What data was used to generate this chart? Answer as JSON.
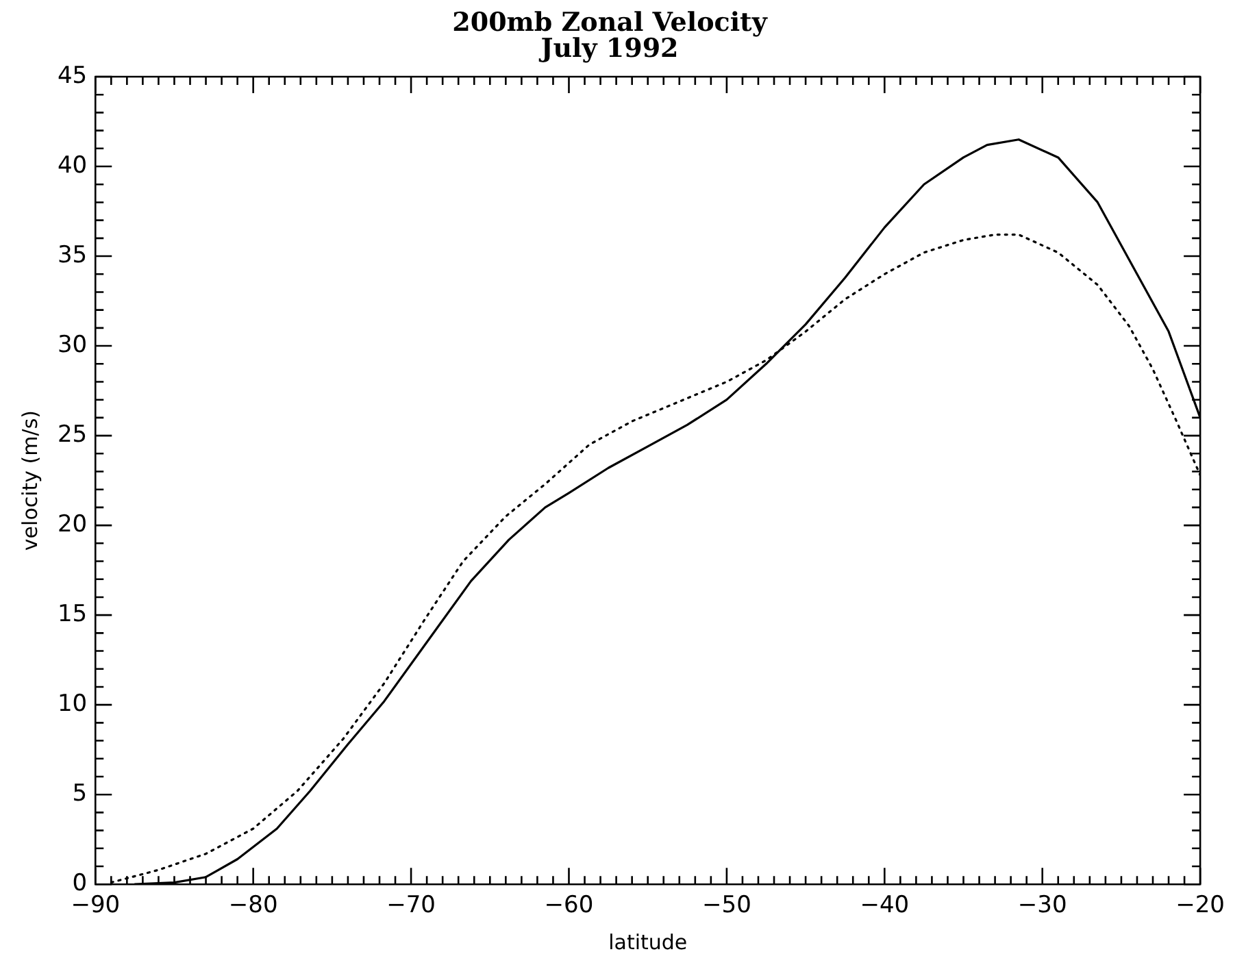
{
  "chart_data": {
    "type": "line",
    "title": "200mb Zonal Velocity",
    "subtitle": "July 1992",
    "xlabel": "latitude",
    "ylabel": "velocity (m/s)",
    "xlim": [
      -90,
      -20
    ],
    "ylim": [
      0,
      45
    ],
    "xticks": [
      -90,
      {
        "value": -89,
        "label": null
      },
      {
        "value": -88,
        "label": null
      },
      {
        "value": -87,
        "label": null
      },
      {
        "value": -86,
        "label": null
      },
      {
        "value": -85,
        "label": null
      },
      {
        "value": -84,
        "label": null
      },
      {
        "value": -83,
        "label": null
      },
      {
        "value": -82,
        "label": null
      },
      {
        "value": -81,
        "label": null
      },
      -80,
      {
        "value": -79,
        "label": null
      },
      {
        "value": -78,
        "label": null
      },
      {
        "value": -77,
        "label": null
      },
      {
        "value": -76,
        "label": null
      },
      {
        "value": -75,
        "label": null
      },
      {
        "value": -74,
        "label": null
      },
      {
        "value": -73,
        "label": null
      },
      {
        "value": -72,
        "label": null
      },
      {
        "value": -71,
        "label": null
      },
      -70,
      {
        "value": -69,
        "label": null
      },
      {
        "value": -68,
        "label": null
      },
      {
        "value": -67,
        "label": null
      },
      {
        "value": -66,
        "label": null
      },
      {
        "value": -65,
        "label": null
      },
      {
        "value": -64,
        "label": null
      },
      {
        "value": -63,
        "label": null
      },
      {
        "value": -62,
        "label": null
      },
      {
        "value": -61,
        "label": null
      },
      -60,
      {
        "value": -59,
        "label": null
      },
      {
        "value": -58,
        "label": null
      },
      {
        "value": -57,
        "label": null
      },
      {
        "value": -56,
        "label": null
      },
      {
        "value": -55,
        "label": null
      },
      {
        "value": -54,
        "label": null
      },
      {
        "value": -53,
        "label": null
      },
      {
        "value": -52,
        "label": null
      },
      {
        "value": -51,
        "label": null
      },
      -50,
      {
        "value": -49,
        "label": null
      },
      {
        "value": -48,
        "label": null
      },
      {
        "value": -47,
        "label": null
      },
      {
        "value": -46,
        "label": null
      },
      {
        "value": -45,
        "label": null
      },
      {
        "value": -44,
        "label": null
      },
      {
        "value": -43,
        "label": null
      },
      {
        "value": -42,
        "label": null
      },
      {
        "value": -41,
        "label": null
      },
      -40,
      {
        "value": -39,
        "label": null
      },
      {
        "value": -38,
        "label": null
      },
      {
        "value": -37,
        "label": null
      },
      {
        "value": -36,
        "label": null
      },
      {
        "value": -35,
        "label": null
      },
      {
        "value": -34,
        "label": null
      },
      {
        "value": -33,
        "label": null
      },
      {
        "value": -32,
        "label": null
      },
      {
        "value": -31,
        "label": null
      },
      -30,
      {
        "value": -29,
        "label": null
      },
      {
        "value": -28,
        "label": null
      },
      {
        "value": -27,
        "label": null
      },
      {
        "value": -26,
        "label": null
      },
      {
        "value": -25,
        "label": null
      },
      {
        "value": -24,
        "label": null
      },
      {
        "value": -23,
        "label": null
      },
      {
        "value": -22,
        "label": null
      },
      {
        "value": -21,
        "label": null
      },
      -20
    ],
    "yticks": [
      0,
      {
        "value": 1,
        "label": null
      },
      {
        "value": 2,
        "label": null
      },
      {
        "value": 3,
        "label": null
      },
      {
        "value": 4,
        "label": null
      },
      5,
      {
        "value": 6,
        "label": null
      },
      {
        "value": 7,
        "label": null
      },
      {
        "value": 8,
        "label": null
      },
      {
        "value": 9,
        "label": null
      },
      10,
      {
        "value": 11,
        "label": null
      },
      {
        "value": 12,
        "label": null
      },
      {
        "value": 13,
        "label": null
      },
      {
        "value": 14,
        "label": null
      },
      15,
      {
        "value": 16,
        "label": null
      },
      {
        "value": 17,
        "label": null
      },
      {
        "value": 18,
        "label": null
      },
      {
        "value": 19,
        "label": null
      },
      20,
      {
        "value": 21,
        "label": null
      },
      {
        "value": 22,
        "label": null
      },
      {
        "value": 23,
        "label": null
      },
      {
        "value": 24,
        "label": null
      },
      25,
      {
        "value": 26,
        "label": null
      },
      {
        "value": 27,
        "label": null
      },
      {
        "value": 28,
        "label": null
      },
      {
        "value": 29,
        "label": null
      },
      30,
      {
        "value": 31,
        "label": null
      },
      {
        "value": 32,
        "label": null
      },
      {
        "value": 33,
        "label": null
      },
      {
        "value": 34,
        "label": null
      },
      35,
      {
        "value": 36,
        "label": null
      },
      {
        "value": 37,
        "label": null
      },
      {
        "value": 38,
        "label": null
      },
      {
        "value": 39,
        "label": null
      },
      40,
      {
        "value": 41,
        "label": null
      },
      {
        "value": 42,
        "label": null
      },
      {
        "value": 43,
        "label": null
      },
      {
        "value": 44,
        "label": null
      },
      45
    ],
    "series": [
      {
        "color": "#000000",
        "line_style": "solid",
        "x": [
          -87.5,
          -85,
          -83,
          -81,
          -78.5,
          -76.4,
          -74,
          -71.7,
          -68.5,
          -66.2,
          -63.8,
          -61.5,
          -60,
          -57.5,
          -55,
          -52.5,
          -50,
          -47.5,
          -45,
          -42.5,
          -40,
          -37.5,
          -35,
          -33.5,
          -31.5,
          -29,
          -26.5,
          -24,
          -22,
          -20
        ],
        "values": [
          0,
          0.1,
          0.4,
          1.4,
          3.1,
          5.2,
          7.8,
          10.2,
          14.1,
          16.9,
          19.2,
          21,
          21.8,
          23.2,
          24.4,
          25.6,
          27,
          29,
          31.2,
          33.8,
          36.6,
          39,
          40.5,
          41.2,
          41.5,
          40.5,
          38,
          34,
          30.8,
          26
        ]
      },
      {
        "color": "#000000",
        "line_style": "dotted",
        "x": [
          -89,
          -86,
          -83,
          -80,
          -77.2,
          -74.3,
          -71.7,
          -69.1,
          -66.7,
          -64,
          -61.5,
          -58.7,
          -56,
          -53,
          -50,
          -47.5,
          -45,
          -42.5,
          -40,
          -37.5,
          -35,
          -33,
          -31.5,
          -29,
          -26.5,
          -24.5,
          -23,
          -21.5,
          -20
        ],
        "values": [
          0.1,
          0.8,
          1.7,
          3.1,
          5.2,
          8.1,
          11.2,
          14.8,
          18,
          20.5,
          22.3,
          24.5,
          25.8,
          26.9,
          28,
          29.2,
          30.8,
          32.6,
          34,
          35.2,
          35.9,
          36.2,
          36.2,
          35.2,
          33.4,
          31.1,
          28.7,
          25.8,
          22.8
        ]
      }
    ]
  }
}
